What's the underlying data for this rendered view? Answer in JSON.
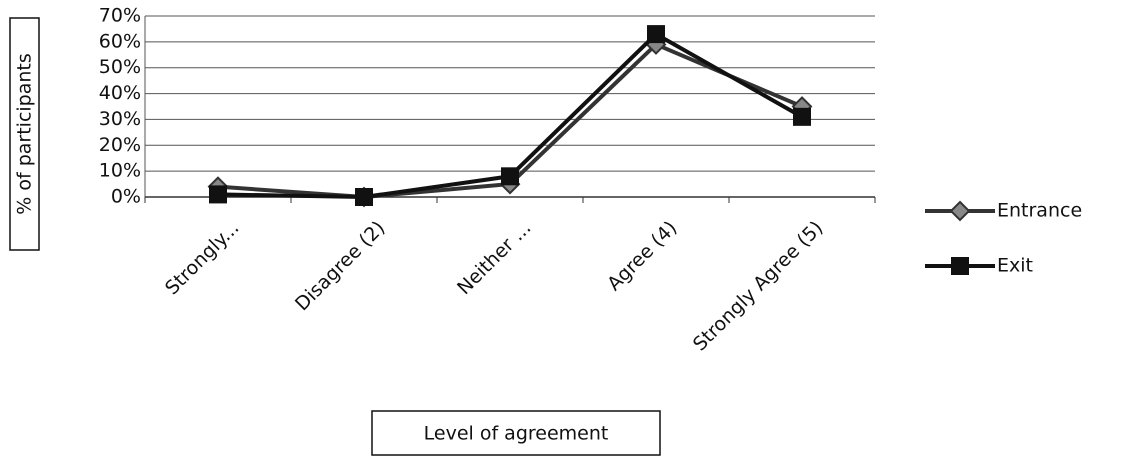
{
  "chart_data": {
    "type": "line",
    "x_label": "Level of agreement",
    "y_label": "% of participants",
    "categories": [
      "Strongly...",
      "Disagree (2)",
      "Neither ...",
      "Agree (4)",
      "Strongly Agree (5)"
    ],
    "series": [
      {
        "name": "Entrance",
        "color": "#333333",
        "marker": "diamond",
        "values": [
          4,
          0,
          5,
          59,
          35
        ]
      },
      {
        "name": "Exit",
        "color": "#111111",
        "marker": "square",
        "values": [
          1,
          0,
          8,
          63,
          31
        ]
      }
    ],
    "ylim": [
      0,
      70
    ],
    "yticks": [
      {
        "value": 0,
        "label": "0%"
      },
      {
        "value": 10,
        "label": "10%"
      },
      {
        "value": 20,
        "label": "20%"
      },
      {
        "value": 30,
        "label": "30%"
      },
      {
        "value": 40,
        "label": "40%"
      },
      {
        "value": 50,
        "label": "50%"
      },
      {
        "value": 60,
        "label": "60%"
      },
      {
        "value": 70,
        "label": "70%"
      }
    ],
    "grid": true,
    "legend": "right"
  }
}
